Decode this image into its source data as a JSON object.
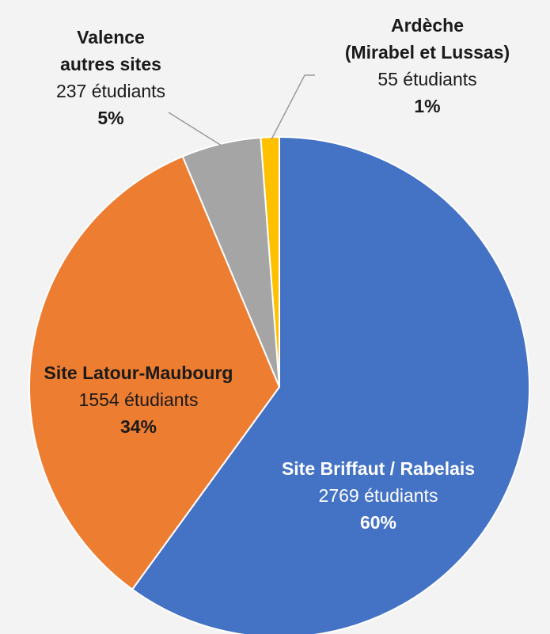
{
  "chart_data": {
    "type": "pie",
    "categories": [
      "Site Briffaut / Rabelais",
      "Site Latour-Maubourg",
      "Valence\nautres sites",
      "Ardèche\n(Mirabel et Lussas)"
    ],
    "values": [
      2769,
      1554,
      237,
      55
    ],
    "value_labels": [
      "2769 étudiants",
      "1554 étudiants",
      "237 étudiants",
      "55 étudiants"
    ],
    "percent_labels": [
      "60%",
      "34%",
      "5%",
      "1%"
    ],
    "colors": [
      "#4472c4",
      "#ed7d31",
      "#a5a5a5",
      "#ffc000"
    ]
  }
}
